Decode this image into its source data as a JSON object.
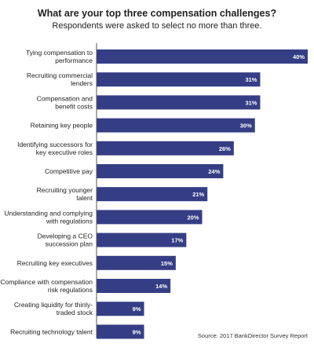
{
  "chart_data": {
    "type": "bar",
    "orientation": "horizontal",
    "title": "What are your top three compensation challenges?",
    "subtitle": "Respondents were asked to select no more than three.",
    "categories": [
      [
        "Tying compensation to",
        "performance"
      ],
      [
        "Recruiting commercial",
        "lenders"
      ],
      [
        "Compensation and",
        "benefit costs"
      ],
      [
        "Retaining key people"
      ],
      [
        "Identifying successors for",
        "key executive roles"
      ],
      [
        "Competitive pay"
      ],
      [
        "Recruiting younger",
        "talent"
      ],
      [
        "Understanding and complying",
        "with regulations"
      ],
      [
        "Developing a CEO",
        "succession plan"
      ],
      [
        "Recruiting key executives"
      ],
      [
        "Compliance with compensation",
        "risk regulations"
      ],
      [
        "Creating liquidity for thinly-",
        "traded stock"
      ],
      [
        "Recruiting technology talent"
      ]
    ],
    "values": [
      40,
      31,
      31,
      30,
      26,
      24,
      21,
      20,
      17,
      15,
      14,
      9,
      9
    ],
    "value_labels": [
      "40%",
      "31%",
      "31%",
      "30%",
      "26%",
      "24%",
      "21%",
      "20%",
      "17%",
      "15%",
      "14%",
      "9%",
      "9%"
    ],
    "xlim": [
      0,
      40
    ],
    "grid": false,
    "bar_color": "#353e85",
    "label_color": "#ffffff",
    "source": "Source: 2017 BankDirector Survey Report"
  }
}
